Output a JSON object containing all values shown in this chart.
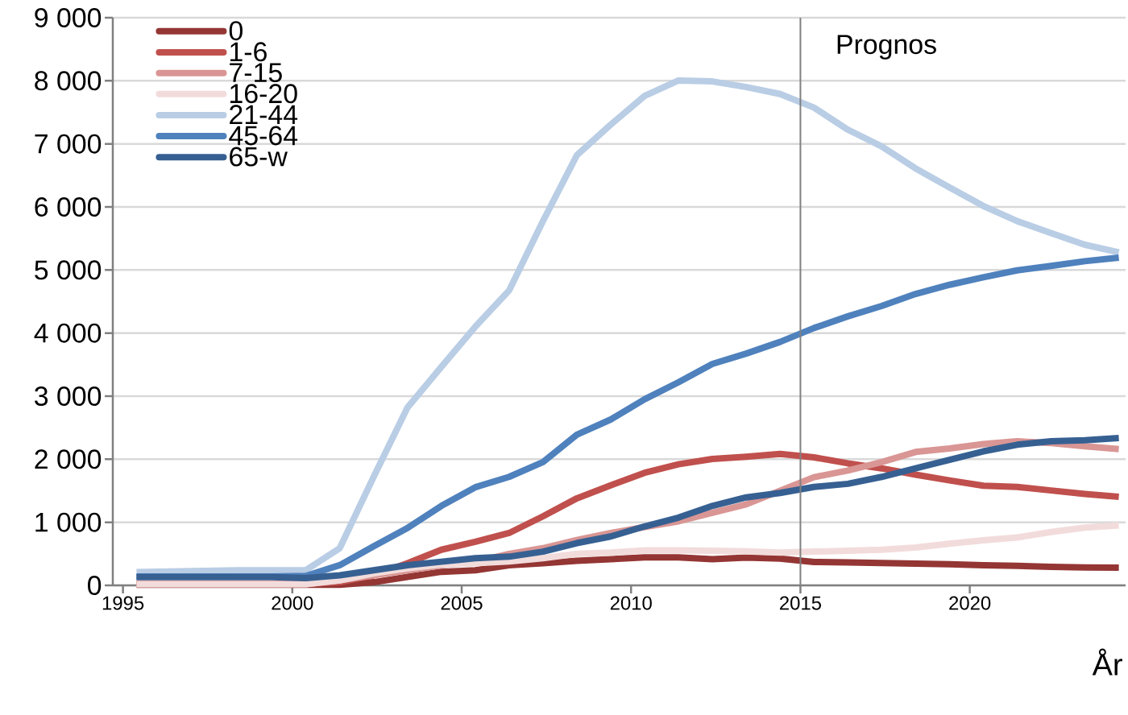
{
  "chart_data": {
    "type": "line",
    "xlabel": "År",
    "x": [
      1995.4,
      1996.4,
      1997.4,
      1998.4,
      1999.4,
      2000.4,
      2001.4,
      2002.4,
      2003.4,
      2004.4,
      2005.4,
      2006.4,
      2007.4,
      2008.4,
      2009.4,
      2010.4,
      2011.4,
      2012.4,
      2013.4,
      2014.4,
      2015.4,
      2016.4,
      2017.4,
      2018.4,
      2019.4,
      2020.4,
      2021.4,
      2022.4,
      2023.4,
      2024.4
    ],
    "series": [
      {
        "name": "0",
        "color": "#943634",
        "values": [
          10,
          10,
          10,
          10,
          10,
          10,
          10,
          50,
          135,
          215,
          240,
          320,
          350,
          390,
          415,
          445,
          445,
          415,
          440,
          425,
          370,
          365,
          355,
          345,
          335,
          320,
          310,
          295,
          285,
          280
        ]
      },
      {
        "name": "1-6",
        "color": "#c0504d",
        "values": [
          25,
          25,
          25,
          25,
          25,
          25,
          50,
          160,
          350,
          565,
          690,
          830,
          1095,
          1380,
          1585,
          1785,
          1920,
          2005,
          2040,
          2085,
          2030,
          1935,
          1855,
          1755,
          1665,
          1580,
          1560,
          1505,
          1450,
          1405
        ]
      },
      {
        "name": "7-15",
        "color": "#d99694",
        "values": [
          20,
          20,
          20,
          20,
          20,
          20,
          80,
          160,
          240,
          320,
          375,
          500,
          590,
          720,
          830,
          925,
          1015,
          1150,
          1285,
          1500,
          1715,
          1820,
          1955,
          2115,
          2170,
          2240,
          2285,
          2255,
          2205,
          2160
        ]
      },
      {
        "name": "16-20",
        "color": "#f2dcdb",
        "values": [
          20,
          20,
          20,
          20,
          20,
          20,
          80,
          190,
          270,
          330,
          350,
          380,
          430,
          500,
          520,
          555,
          555,
          550,
          540,
          520,
          535,
          550,
          565,
          600,
          660,
          715,
          760,
          845,
          915,
          950
        ]
      },
      {
        "name": "21-44",
        "color": "#b9cde5",
        "values": [
          210,
          220,
          230,
          240,
          240,
          240,
          590,
          1720,
          2820,
          3465,
          4100,
          4675,
          5775,
          6820,
          7305,
          7760,
          8005,
          7990,
          7900,
          7790,
          7575,
          7225,
          6960,
          6610,
          6310,
          6015,
          5775,
          5585,
          5400,
          5280
        ]
      },
      {
        "name": "45-64",
        "color": "#4f81bd",
        "values": [
          140,
          140,
          140,
          140,
          140,
          150,
          320,
          620,
          910,
          1260,
          1555,
          1720,
          1955,
          2390,
          2630,
          2950,
          3220,
          3510,
          3675,
          3860,
          4080,
          4265,
          4430,
          4620,
          4765,
          4885,
          4995,
          5065,
          5140,
          5195
        ]
      },
      {
        "name": "65-w",
        "color": "#376092",
        "values": [
          130,
          130,
          130,
          130,
          130,
          115,
          160,
          240,
          320,
          375,
          430,
          455,
          535,
          670,
          775,
          935,
          1075,
          1260,
          1395,
          1465,
          1560,
          1610,
          1720,
          1855,
          1990,
          2125,
          2230,
          2285,
          2300,
          2335
        ]
      }
    ],
    "xlim": [
      1994.7,
      2024.6
    ],
    "ylim": [
      0,
      9000
    ],
    "xticks": [
      1995,
      2000,
      2005,
      2010,
      2015,
      2020
    ],
    "yticks": [
      {
        "value": 0,
        "label": "0"
      },
      {
        "value": 1000,
        "label": "1 000"
      },
      {
        "value": 2000,
        "label": "2 000"
      },
      {
        "value": 3000,
        "label": "3 000"
      },
      {
        "value": 4000,
        "label": "4 000"
      },
      {
        "value": 5000,
        "label": "5 000"
      },
      {
        "value": 6000,
        "label": "6 000"
      },
      {
        "value": 7000,
        "label": "7 000"
      },
      {
        "value": 8000,
        "label": "8 000"
      },
      {
        "value": 9000,
        "label": "9 000"
      }
    ],
    "ref_lines": [
      {
        "axis": "x",
        "value": 2015,
        "label": "Prognos",
        "color": "#808080"
      }
    ],
    "grid": "y",
    "legend": "top left",
    "marker": "none",
    "line_style": "solid"
  }
}
